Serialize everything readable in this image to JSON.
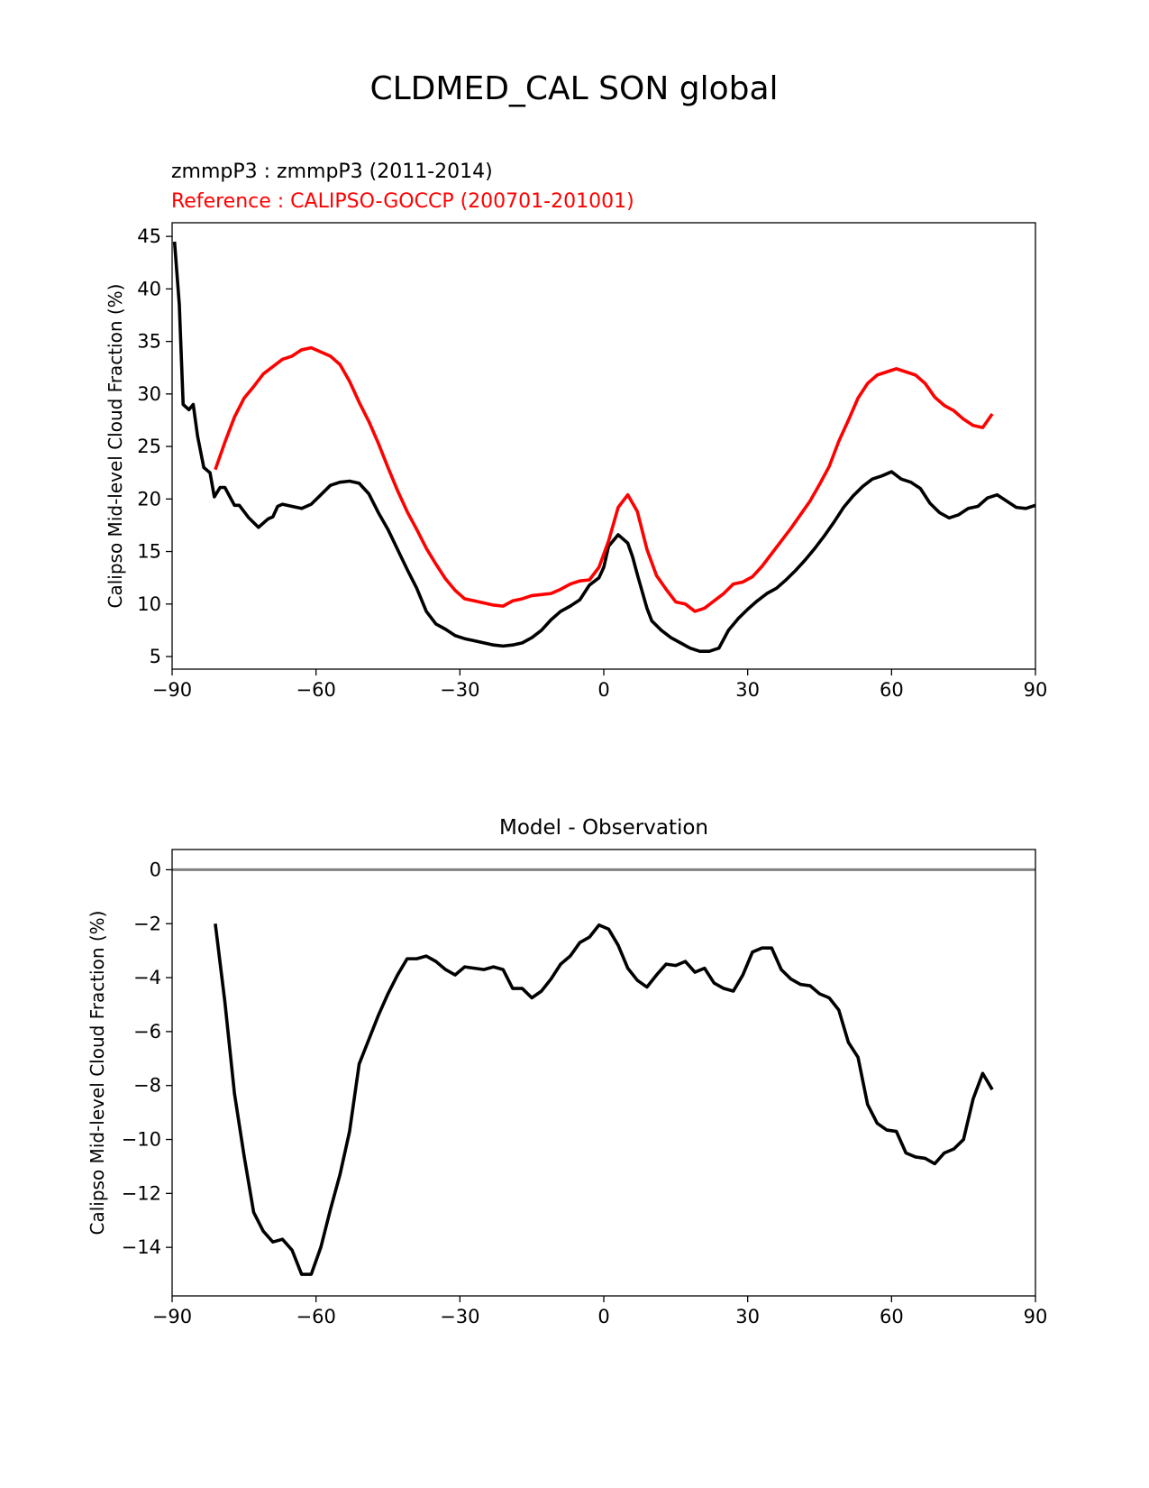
{
  "figure": {
    "title": "CLDMED_CAL SON global"
  },
  "colors": {
    "model": "#000000",
    "reference": "#ff0000",
    "zero_line": "#808080"
  },
  "chart_data": [
    {
      "type": "line",
      "subtitle_model": "zmmpP3 : zmmpP3 (2011-2014)",
      "subtitle_reference": "Reference : CALIPSO-GOCCP (200701-201001)",
      "xlabel": "",
      "ylabel": "Calipso Mid-level Cloud Fraction (%)",
      "xlim": [
        -90,
        90
      ],
      "ylim": [
        3.8,
        46.3
      ],
      "xticks": [
        -90,
        -60,
        -30,
        0,
        30,
        60,
        90
      ],
      "xtick_labels": [
        "−90",
        "−60",
        "−30",
        "0",
        "30",
        "60",
        "90"
      ],
      "yticks": [
        5,
        10,
        15,
        20,
        25,
        30,
        35,
        40,
        45
      ],
      "ytick_labels": [
        "5",
        "10",
        "15",
        "20",
        "25",
        "30",
        "35",
        "40",
        "45"
      ],
      "series": [
        {
          "name": "zmmpP3",
          "color": "#000000",
          "x": [
            -89.5,
            -88.5,
            -87.7,
            -86.5,
            -85.6,
            -84.7,
            -83.4,
            -82.1,
            -81.2,
            -80,
            -79,
            -77,
            -76,
            -74,
            -72,
            -70,
            -69,
            -68,
            -67,
            -65,
            -63,
            -61,
            -59,
            -57,
            -55,
            -53,
            -51,
            -49,
            -47,
            -45,
            -43,
            -41,
            -39,
            -37,
            -35,
            -33,
            -31,
            -29,
            -27,
            -25,
            -23,
            -21,
            -19,
            -17,
            -15,
            -13,
            -11,
            -9,
            -7,
            -5,
            -3,
            -1,
            0,
            1,
            3,
            5,
            6,
            7,
            8,
            9,
            10,
            12,
            14,
            16,
            18,
            20,
            22,
            24,
            26,
            28,
            30,
            32,
            34,
            36,
            38,
            40,
            42,
            44,
            46,
            48,
            50,
            52,
            54,
            56,
            58,
            60,
            62,
            64,
            66,
            68,
            70,
            72,
            74,
            76,
            78,
            80,
            82,
            84,
            86,
            88,
            90
          ],
          "values": [
            44.5,
            38.5,
            29,
            28.5,
            29,
            26,
            23,
            22.5,
            20.2,
            21.1,
            21.1,
            19.4,
            19.4,
            18.2,
            17.3,
            18.1,
            18.3,
            19.3,
            19.5,
            19.3,
            19.1,
            19.5,
            20.4,
            21.3,
            21.6,
            21.7,
            21.5,
            20.5,
            18.7,
            17.1,
            15.2,
            13.3,
            11.5,
            9.3,
            8.1,
            7.6,
            7.0,
            6.7,
            6.5,
            6.3,
            6.1,
            6.0,
            6.1,
            6.3,
            6.8,
            7.5,
            8.5,
            9.3,
            9.8,
            10.4,
            11.8,
            12.5,
            13.5,
            15.5,
            16.6,
            15.8,
            14.5,
            12.8,
            11.2,
            9.6,
            8.4,
            7.5,
            6.8,
            6.3,
            5.8,
            5.5,
            5.5,
            5.8,
            7.5,
            8.6,
            9.5,
            10.3,
            11.0,
            11.5,
            12.3,
            13.2,
            14.2,
            15.3,
            16.5,
            17.8,
            19.2,
            20.3,
            21.2,
            21.9,
            22.2,
            22.6,
            21.9,
            21.6,
            21.0,
            19.6,
            18.7,
            18.2,
            18.5,
            19.1,
            19.3,
            20.1,
            20.4,
            19.8,
            19.2,
            19.1,
            19.4
          ]
        },
        {
          "name": "Reference : CALIPSO-GOCCP",
          "color": "#ff0000",
          "x": [
            -81,
            -79,
            -77,
            -75,
            -73,
            -71,
            -69,
            -67,
            -65,
            -63,
            -61,
            -59,
            -57,
            -55,
            -53,
            -51,
            -49,
            -47,
            -45,
            -43,
            -41,
            -39,
            -37,
            -35,
            -33,
            -31,
            -29,
            -27,
            -25,
            -23,
            -21,
            -19,
            -17,
            -15,
            -13,
            -11,
            -9,
            -7,
            -5,
            -3,
            -1,
            1,
            3,
            5,
            7,
            9,
            11,
            13,
            15,
            17,
            19,
            21,
            23,
            25,
            27,
            29,
            31,
            33,
            35,
            37,
            39,
            41,
            43,
            45,
            47,
            49,
            51,
            53,
            55,
            57,
            59,
            61,
            63,
            65,
            67,
            69,
            71,
            73,
            75,
            77,
            79,
            81
          ],
          "values": [
            22.8,
            25.4,
            27.8,
            29.6,
            30.7,
            31.9,
            32.6,
            33.3,
            33.6,
            34.2,
            34.4,
            34.0,
            33.6,
            32.8,
            31.2,
            29.2,
            27.4,
            25.3,
            23.0,
            20.8,
            18.8,
            17.1,
            15.3,
            13.8,
            12.4,
            11.3,
            10.5,
            10.3,
            10.1,
            9.9,
            9.8,
            10.3,
            10.5,
            10.8,
            10.9,
            11.0,
            11.4,
            11.9,
            12.2,
            12.3,
            13.5,
            16.0,
            19.2,
            20.4,
            18.8,
            15.2,
            12.7,
            11.4,
            10.2,
            10.0,
            9.3,
            9.6,
            10.3,
            11.0,
            11.9,
            12.1,
            12.6,
            13.6,
            14.8,
            16.0,
            17.2,
            18.5,
            19.8,
            21.4,
            23.1,
            25.5,
            27.5,
            29.6,
            31.0,
            31.8,
            32.1,
            32.4,
            32.1,
            31.8,
            31.0,
            29.7,
            28.9,
            28.4,
            27.6,
            27.0,
            26.8,
            28.1
          ]
        }
      ]
    },
    {
      "type": "line",
      "title": "Model - Observation",
      "xlabel": "",
      "ylabel": "Calipso Mid-level Cloud Fraction (%)",
      "xlim": [
        -90,
        90
      ],
      "ylim": [
        -15.8,
        0.75
      ],
      "xticks": [
        -90,
        -60,
        -30,
        0,
        30,
        60,
        90
      ],
      "xtick_labels": [
        "−90",
        "−60",
        "−30",
        "0",
        "30",
        "60",
        "90"
      ],
      "yticks": [
        0,
        -2,
        -4,
        -6,
        -8,
        -10,
        -12,
        -14
      ],
      "ytick_labels": [
        "0",
        "−2",
        "−4",
        "−6",
        "−8",
        "−10",
        "−12",
        "−14"
      ],
      "zero_line": 0,
      "series": [
        {
          "name": "Model - Observation",
          "color": "#000000",
          "x": [
            -81,
            -79,
            -77,
            -75,
            -73,
            -71,
            -69,
            -67,
            -65,
            -63,
            -61,
            -59,
            -57,
            -55,
            -53,
            -51,
            -49,
            -47,
            -45,
            -43,
            -41,
            -39,
            -37,
            -35,
            -33,
            -31,
            -29,
            -27,
            -25,
            -23,
            -21,
            -19,
            -17,
            -15,
            -13,
            -11,
            -9,
            -7,
            -5,
            -3,
            -1,
            1,
            3,
            5,
            7,
            9,
            11,
            13,
            15,
            17,
            19,
            21,
            23,
            25,
            27,
            29,
            31,
            33,
            35,
            37,
            39,
            41,
            43,
            45,
            47,
            49,
            51,
            53,
            55,
            57,
            59,
            61,
            63,
            65,
            67,
            69,
            71,
            73,
            75,
            77,
            79,
            81
          ],
          "values": [
            -2.0,
            -4.9,
            -8.3,
            -10.6,
            -12.7,
            -13.4,
            -13.8,
            -13.7,
            -14.1,
            -15.0,
            -15.0,
            -14.0,
            -12.6,
            -11.3,
            -9.7,
            -7.2,
            -6.3,
            -5.4,
            -4.6,
            -3.9,
            -3.3,
            -3.3,
            -3.2,
            -3.4,
            -3.7,
            -3.9,
            -3.6,
            -3.65,
            -3.7,
            -3.6,
            -3.7,
            -4.4,
            -4.4,
            -4.75,
            -4.5,
            -4.05,
            -3.5,
            -3.2,
            -2.7,
            -2.5,
            -2.05,
            -2.2,
            -2.8,
            -3.65,
            -4.1,
            -4.35,
            -3.9,
            -3.5,
            -3.55,
            -3.4,
            -3.8,
            -3.65,
            -4.2,
            -4.4,
            -4.5,
            -3.9,
            -3.05,
            -2.9,
            -2.9,
            -3.7,
            -4.05,
            -4.25,
            -4.3,
            -4.6,
            -4.75,
            -5.2,
            -6.4,
            -6.95,
            -8.7,
            -9.4,
            -9.65,
            -9.7,
            -10.5,
            -10.65,
            -10.7,
            -10.9,
            -10.5,
            -10.35,
            -10.0,
            -8.5,
            -7.55,
            -8.15
          ]
        }
      ]
    }
  ]
}
